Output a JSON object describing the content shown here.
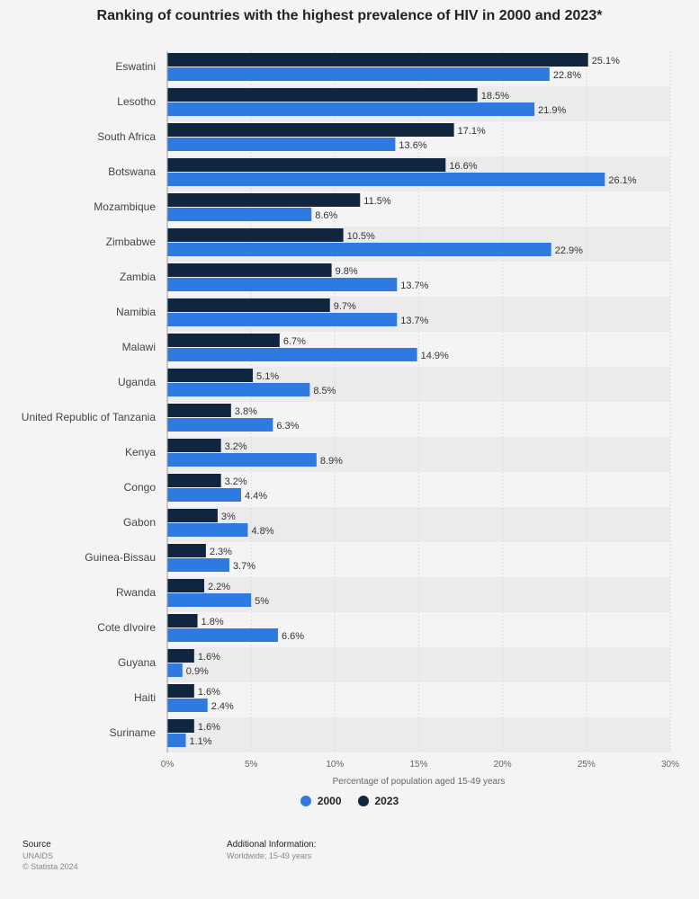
{
  "chart_data": {
    "type": "bar",
    "orientation": "horizontal",
    "title": "Ranking of countries with the highest prevalence of HIV in 2000 and 2023*",
    "xlabel": "Percentage of population aged 15-49 years",
    "ylabel": "",
    "xlim": [
      0,
      30
    ],
    "xticks": [
      "0%",
      "5%",
      "10%",
      "15%",
      "20%",
      "25%",
      "30%"
    ],
    "grid": true,
    "legend_position": "bottom",
    "categories": [
      "Eswatini",
      "Lesotho",
      "South Africa",
      "Botswana",
      "Mozambique",
      "Zimbabwe",
      "Zambia",
      "Namibia",
      "Malawi",
      "Uganda",
      "United Republic of Tanzania",
      "Kenya",
      "Congo",
      "Gabon",
      "Guinea-Bissau",
      "Rwanda",
      "Cote dIvoire",
      "Guyana",
      "Haiti",
      "Suriname"
    ],
    "series": [
      {
        "name": "2023",
        "color": "#0f2540",
        "values": [
          25.1,
          18.5,
          17.1,
          16.6,
          11.5,
          10.5,
          9.8,
          9.7,
          6.7,
          5.1,
          3.8,
          3.2,
          3.2,
          3.0,
          2.3,
          2.2,
          1.8,
          1.6,
          1.6,
          1.6
        ],
        "labels": [
          "25.1%",
          "18.5%",
          "17.1%",
          "16.6%",
          "11.5%",
          "10.5%",
          "9.8%",
          "9.7%",
          "6.7%",
          "5.1%",
          "3.8%",
          "3.2%",
          "3.2%",
          "3%",
          "2.3%",
          "2.2%",
          "1.8%",
          "1.6%",
          "1.6%",
          "1.6%"
        ]
      },
      {
        "name": "2000",
        "color": "#2e7ae0",
        "values": [
          22.8,
          21.9,
          13.6,
          26.1,
          8.6,
          22.9,
          13.7,
          13.7,
          14.9,
          8.5,
          6.3,
          8.9,
          4.4,
          4.8,
          3.7,
          5.0,
          6.6,
          0.9,
          2.4,
          1.1
        ],
        "labels": [
          "22.8%",
          "21.9%",
          "13.6%",
          "26.1%",
          "8.6%",
          "22.9%",
          "13.7%",
          "13.7%",
          "14.9%",
          "8.5%",
          "6.3%",
          "8.9%",
          "4.4%",
          "4.8%",
          "3.7%",
          "5%",
          "6.6%",
          "0.9%",
          "2.4%",
          "1.1%"
        ]
      }
    ]
  },
  "legend": {
    "items": [
      {
        "label": "2000",
        "color": "#2e7ae0"
      },
      {
        "label": "2023",
        "color": "#0f2540"
      }
    ]
  },
  "footer": {
    "source_heading": "Source",
    "source_lines": [
      "UNAIDS",
      "© Statista 2024"
    ],
    "info_heading": "Additional Information:",
    "info_text": "Worldwide; 15-49 years"
  }
}
